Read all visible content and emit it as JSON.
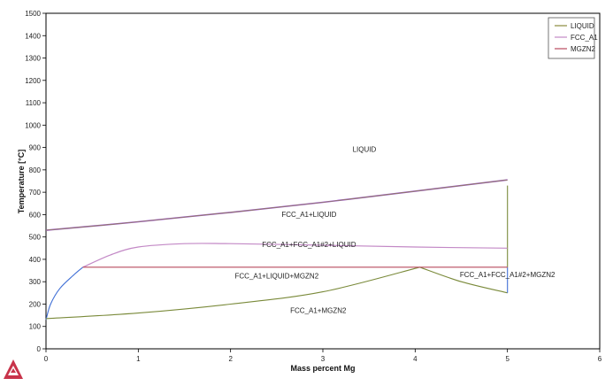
{
  "chart_data": {
    "type": "line",
    "xlabel": "Mass percent Mg",
    "ylabel": "Temperature [°C]",
    "xlim": [
      0,
      6
    ],
    "ylim": [
      0,
      1500
    ],
    "xticks": [
      "0",
      "1",
      "2",
      "3",
      "4",
      "5",
      "6"
    ],
    "yticks": [
      "0",
      "100",
      "200",
      "300",
      "400",
      "500",
      "600",
      "700",
      "800",
      "900",
      "1000",
      "1100",
      "1200",
      "1300",
      "1400",
      "1500"
    ],
    "grid": false,
    "legend_position": "top-right",
    "colors": {
      "LIQUID": "#8a8a3c",
      "FCC_A1": "#c389c6",
      "MGZN2": "#b94a5e",
      "liquidus": "#9b54c8",
      "solvus_low": "#3f6fd6",
      "solidus_low": "#7a8a3a",
      "axes": "#000000"
    },
    "series": [
      {
        "name": "LIQUID",
        "points": [
          [
            0,
            530
          ],
          [
            1,
            568
          ],
          [
            2,
            610
          ],
          [
            3,
            655
          ],
          [
            4,
            705
          ],
          [
            5,
            755
          ]
        ]
      },
      {
        "name": "FCC_A1",
        "points": [
          [
            0.4,
            365
          ],
          [
            0.7,
            420
          ],
          [
            1.0,
            455
          ],
          [
            1.5,
            470
          ],
          [
            2.0,
            470
          ],
          [
            3.0,
            463
          ],
          [
            4.0,
            455
          ],
          [
            5.0,
            450
          ]
        ]
      },
      {
        "name": "MGZN2",
        "points": [
          [
            0.4,
            365
          ],
          [
            5.0,
            365
          ]
        ]
      }
    ],
    "extra_curves": [
      {
        "key": "solvus_low",
        "points": [
          [
            0,
            130
          ],
          [
            0.05,
            200
          ],
          [
            0.15,
            270
          ],
          [
            0.3,
            330
          ],
          [
            0.4,
            365
          ]
        ]
      },
      {
        "key": "solidus_low",
        "points": [
          [
            0,
            135
          ],
          [
            1,
            160
          ],
          [
            2,
            200
          ],
          [
            3,
            255
          ],
          [
            4.05,
            365
          ]
        ]
      },
      {
        "key": "solidus_low",
        "points": [
          [
            4.05,
            365
          ],
          [
            4.5,
            300
          ],
          [
            5.0,
            250
          ]
        ]
      },
      {
        "key": "solvus_low",
        "points": [
          [
            5.0,
            250
          ],
          [
            5.0,
            365
          ]
        ]
      },
      {
        "key": "solidus_low",
        "points": [
          [
            5.0,
            365
          ],
          [
            5.0,
            730
          ]
        ]
      }
    ],
    "region_labels": [
      {
        "text": "LIQUID",
        "x": 3.45,
        "y": 880
      },
      {
        "text": "FCC_A1+LIQUID",
        "x": 2.85,
        "y": 590
      },
      {
        "text": "FCC_A1+FCC_A1#2+LIQUID",
        "x": 2.85,
        "y": 455
      },
      {
        "text": "FCC_A1+LIQUID+MGZN2",
        "x": 2.5,
        "y": 315
      },
      {
        "text": "FCC_A1+FCC_A1#2+MGZN2",
        "x": 5.0,
        "y": 320
      },
      {
        "text": "FCC_A1+MGZN2",
        "x": 2.95,
        "y": 160
      }
    ]
  }
}
